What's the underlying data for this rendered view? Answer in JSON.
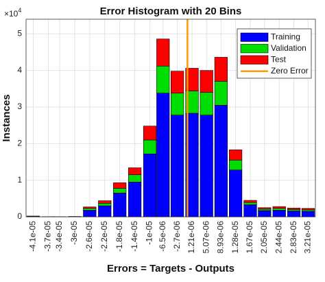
{
  "chart_data": {
    "type": "stacked_histogram",
    "title": "Error Histogram with 20 Bins",
    "x_label": "Errors = Targets - Outputs",
    "y_label": "Instances",
    "y_multiplier_base": "×10",
    "y_multiplier_exponent": "4",
    "x": [
      {
        "value": -4.1e-05,
        "label": "-4.1e-05"
      },
      {
        "value": -3.7e-05,
        "label": "-3.7e-05"
      },
      {
        "value": -3.4e-05,
        "label": "-3.4e-05"
      },
      {
        "value": -3e-05,
        "label": "-3e-05"
      },
      {
        "value": -2.6e-05,
        "label": "-2.6e-05"
      },
      {
        "value": -2.2e-05,
        "label": "-2.2e-05"
      },
      {
        "value": -1.8e-05,
        "label": "-1.8e-05"
      },
      {
        "value": -1.4e-05,
        "label": "-1.4e-05"
      },
      {
        "value": -1e-05,
        "label": "-1e-05"
      },
      {
        "value": -6.5e-06,
        "label": "-6.5e-06"
      },
      {
        "value": -2.7e-06,
        "label": "-2.7e-06"
      },
      {
        "value": 1.21e-06,
        "label": "1.21e-06"
      },
      {
        "value": 5.07e-06,
        "label": "5.07e-06"
      },
      {
        "value": 8.93e-06,
        "label": "8.93e-06"
      },
      {
        "value": 1.28e-05,
        "label": "1.28e-05"
      },
      {
        "value": 1.67e-05,
        "label": "1.67e-05"
      },
      {
        "value": 2.05e-05,
        "label": "2.05e-05"
      },
      {
        "value": 2.44e-05,
        "label": "2.44e-05"
      },
      {
        "value": 2.83e-05,
        "label": "2.83e-05"
      },
      {
        "value": 3.21e-05,
        "label": "3.21e-05"
      }
    ],
    "series": [
      {
        "name": "Training",
        "color": "#0000ff",
        "values": [
          0.01,
          0.005,
          0.005,
          0.01,
          0.18,
          0.3,
          0.65,
          0.95,
          1.72,
          3.38,
          2.78,
          2.83,
          2.78,
          3.05,
          1.28,
          0.33,
          0.17,
          0.18,
          0.16,
          0.15
        ]
      },
      {
        "name": "Validation",
        "color": "#00dd00",
        "values": [
          0.005,
          0,
          0,
          0,
          0.05,
          0.07,
          0.13,
          0.2,
          0.38,
          0.74,
          0.6,
          0.61,
          0.62,
          0.65,
          0.27,
          0.06,
          0.04,
          0.05,
          0.04,
          0.04
        ]
      },
      {
        "name": "Test",
        "color": "#ff0000",
        "values": [
          0.005,
          0,
          0,
          0,
          0.04,
          0.07,
          0.15,
          0.19,
          0.38,
          0.74,
          0.6,
          0.62,
          0.6,
          0.66,
          0.28,
          0.06,
          0.04,
          0.05,
          0.04,
          0.04
        ]
      }
    ],
    "reference_line": {
      "name": "Zero Error",
      "value": 0,
      "color": "#ff9900"
    },
    "ylim": [
      0,
      5.4
    ],
    "yticks": [
      0,
      1,
      2,
      3,
      4,
      5
    ],
    "grid": true,
    "legend": "upper right"
  }
}
